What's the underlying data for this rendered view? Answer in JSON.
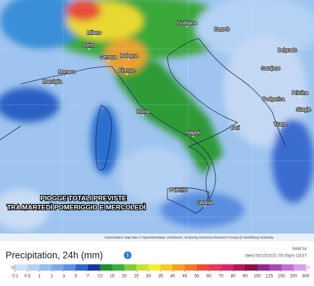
{
  "map": {
    "cities": [
      "Ljubljana",
      "Zagreb",
      "Milano",
      "Torino",
      "Genova",
      "Bologna",
      "Firenze",
      "Monaco",
      "Marsiglia",
      "Roma",
      "Napoli",
      "Bari",
      "Belgrado",
      "Sarajevo",
      "Podgorica",
      "Pristina",
      "Skopje",
      "Tirane",
      "Palermo",
      "Catania"
    ],
    "overlay": [
      "PIOGGE TOTALI PREVISTE",
      "TRA MARTEDÌ POMERIGGIO E MERCOLEDÌ"
    ],
    "attribution": "Kartendaten | Map data © OpenStreetMap contributors, rendering GIScience Research Group @ Heidelberg University"
  },
  "legend": {
    "title": "Precipitation, 24h (mm)",
    "valid_label": "Valid for",
    "valid_time": "Wed 05/10/2023, 05:00pm CEST",
    "ticks": [
      0.1,
      0.5,
      1,
      2,
      3,
      5,
      7,
      10,
      15,
      20,
      25,
      30,
      35,
      40,
      45,
      50,
      60,
      70,
      80,
      90,
      100,
      125,
      150,
      200,
      300
    ],
    "colors": [
      "#c8c8c8",
      "#cfe1f7",
      "#b5d0f3",
      "#98bdef",
      "#7aa9ea",
      "#5a91e2",
      "#2f66c9",
      "#17379a",
      "#1e8f2e",
      "#3cb03a",
      "#7dcc3c",
      "#c8e03c",
      "#f5ec3a",
      "#f8c82e",
      "#f4a02a",
      "#ef7a2a",
      "#e8503a",
      "#e23a5a",
      "#d42a6e",
      "#b01a5a",
      "#8c1040",
      "#8e2a8e",
      "#a848b4",
      "#c070d0",
      "#d8a0e6",
      "#ecd0f4"
    ]
  }
}
